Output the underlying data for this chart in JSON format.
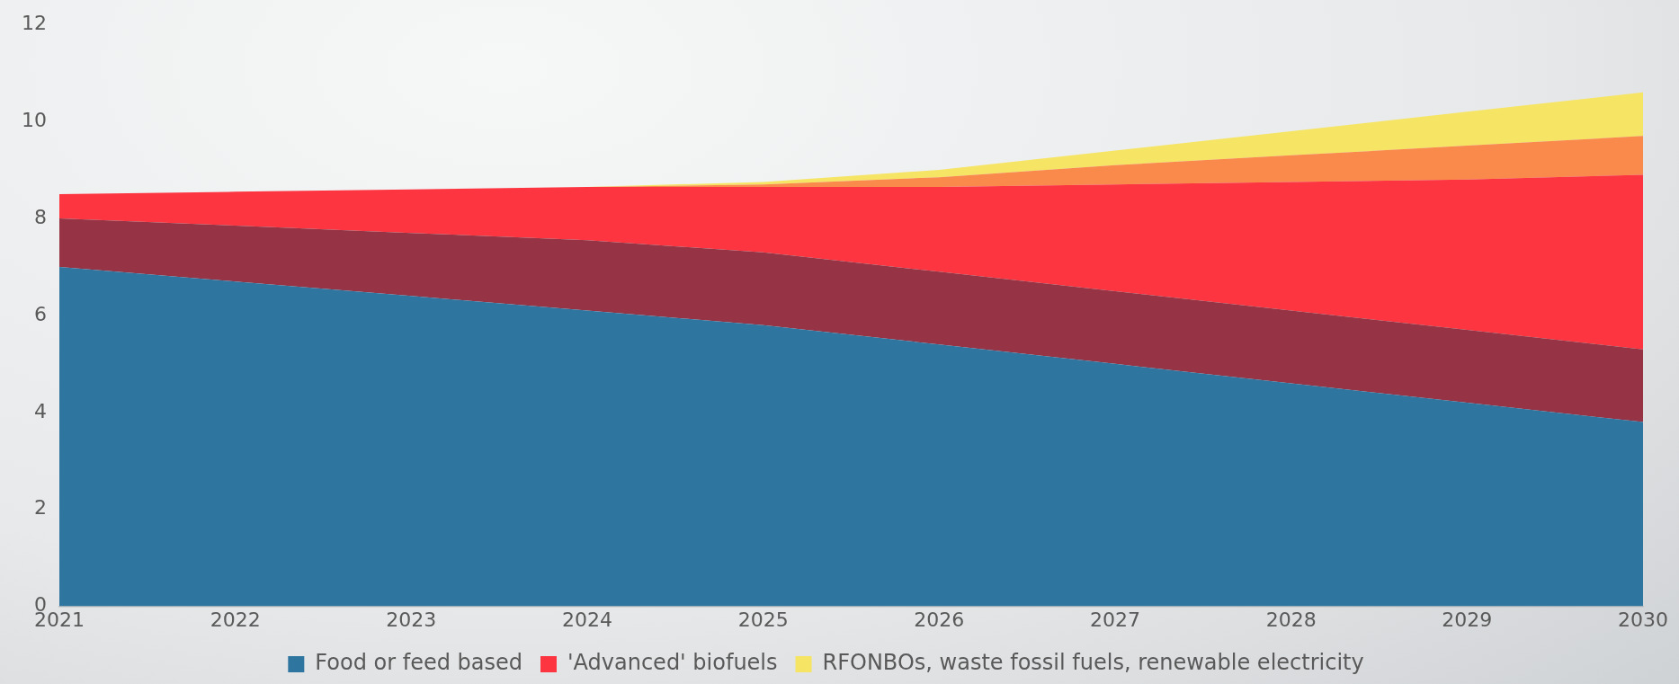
{
  "chart_data": {
    "type": "area",
    "stacked": true,
    "x": [
      2021,
      2022,
      2023,
      2024,
      2025,
      2026,
      2027,
      2028,
      2029,
      2030
    ],
    "xlim": [
      2021,
      2030
    ],
    "xticks": [
      2021,
      2022,
      2023,
      2024,
      2025,
      2026,
      2027,
      2028,
      2029,
      2030
    ],
    "ylim": [
      0,
      12
    ],
    "yticks": [
      0,
      2,
      4,
      6,
      8,
      10,
      12
    ],
    "grid": false,
    "legend": "bottom",
    "series": [
      {
        "name": "Food or feed based",
        "color": "#2e75a0",
        "values": [
          7.0,
          6.7,
          6.4,
          6.1,
          5.8,
          5.4,
          5.0,
          4.6,
          4.2,
          3.8
        ]
      },
      {
        "color": "#963446",
        "values": [
          1.0,
          1.15,
          1.3,
          1.45,
          1.5,
          1.5,
          1.5,
          1.5,
          1.5,
          1.5
        ]
      },
      {
        "name": "'Advanced' biofuels",
        "color": "#fd3540",
        "values": [
          0.5,
          0.7,
          0.9,
          1.1,
          1.35,
          1.75,
          2.2,
          2.65,
          3.1,
          3.6
        ]
      },
      {
        "color": "#fa8a4c",
        "values": [
          0,
          0,
          0,
          0,
          0.05,
          0.2,
          0.4,
          0.55,
          0.7,
          0.8
        ]
      },
      {
        "name": "RFONBOs, waste fossil fuels, renewable electricity",
        "color": "#f6e564",
        "values": [
          0,
          0,
          0,
          0,
          0.05,
          0.15,
          0.3,
          0.5,
          0.7,
          0.9
        ]
      }
    ]
  }
}
